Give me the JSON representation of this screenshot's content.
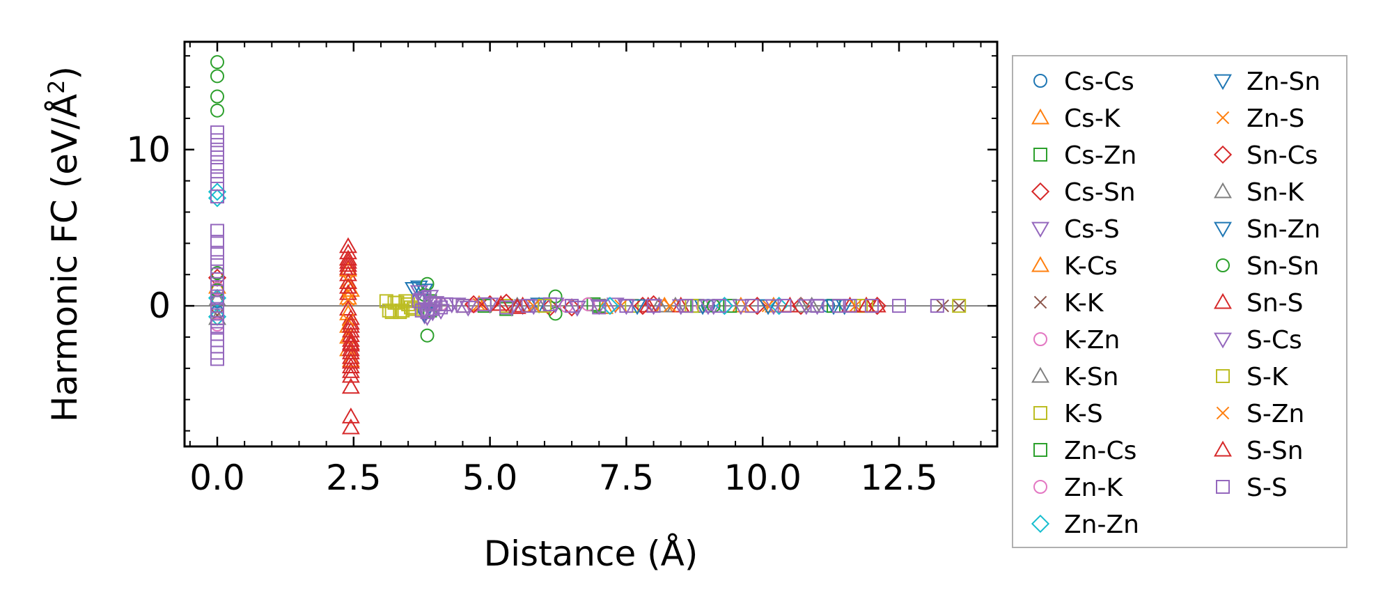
{
  "chart_data": {
    "type": "scatter",
    "title": "",
    "xlabel": "Distance (Å)",
    "ylabel_main": "Harmonic FC (eV/Å",
    "ylabel_sup": "2",
    "ylabel_close": ")",
    "xlim": [
      -0.6,
      14.3
    ],
    "ylim": [
      -9.0,
      16.9
    ],
    "xticks": [
      0.0,
      2.5,
      5.0,
      7.5,
      10.0,
      12.5
    ],
    "xtick_labels": [
      "0.0",
      "2.5",
      "5.0",
      "7.5",
      "10.0",
      "12.5"
    ],
    "yticks": [
      0,
      10
    ],
    "ytick_labels": [
      "0",
      "10"
    ],
    "zero_line": true,
    "grid": false,
    "legend_position": "right",
    "series": [
      {
        "name": "Cs-Cs",
        "marker": "circle",
        "color": "#1f77b4",
        "x": [
          0.0,
          0.0,
          9.0,
          11.2
        ],
        "y": [
          0.3,
          -0.4,
          0.0,
          0.0
        ]
      },
      {
        "name": "Cs-K",
        "marker": "triangle-up",
        "color": "#ff7f0e",
        "x": [
          0.0,
          2.4,
          2.4,
          2.4,
          2.4,
          4.8,
          7.1,
          9.6,
          11.9
        ],
        "y": [
          1.2,
          2.3,
          1.5,
          -0.5,
          -1.3,
          0.1,
          -0.1,
          0.0,
          0.0
        ]
      },
      {
        "name": "Cs-Zn",
        "marker": "square",
        "color": "#2ca02c",
        "x": [
          3.9,
          5.3,
          6.9,
          8.8,
          11.3
        ],
        "y": [
          0.3,
          -0.2,
          0.1,
          0.0,
          0.0
        ]
      },
      {
        "name": "Cs-Sn",
        "marker": "diamond",
        "color": "#d62728",
        "x": [
          0.0,
          5.0,
          6.5,
          8.0,
          10.7,
          12.1
        ],
        "y": [
          1.8,
          0.1,
          -0.1,
          0.1,
          0.0,
          0.0
        ]
      },
      {
        "name": "Cs-S",
        "marker": "triangle-down",
        "color": "#9467bd",
        "x": [
          3.8,
          4.4,
          5.6,
          7.3,
          9.1,
          11.0
        ],
        "y": [
          -0.6,
          0.1,
          0.0,
          0.1,
          0.0,
          0.0
        ]
      },
      {
        "name": "K-Cs",
        "marker": "triangle-up",
        "color": "#ff7f0e",
        "x": [
          2.4,
          2.4,
          2.4,
          2.4,
          2.45,
          2.45,
          5.6,
          8.2,
          10.2
        ],
        "y": [
          3.0,
          0.5,
          -2.0,
          -2.8,
          -3.5,
          1.0,
          0.0,
          0.0,
          0.0
        ]
      },
      {
        "name": "K-K",
        "marker": "x",
        "color": "#8c564b",
        "x": [
          0.0,
          0.0,
          13.3,
          13.6
        ],
        "y": [
          1.6,
          -0.6,
          0.0,
          0.0
        ]
      },
      {
        "name": "K-Zn",
        "marker": "circle",
        "color": "#e377c2",
        "x": [
          0.0,
          4.7,
          6.8,
          9.3
        ],
        "y": [
          -1.2,
          0.0,
          0.1,
          0.0
        ]
      },
      {
        "name": "K-Sn",
        "marker": "triangle-up",
        "color": "#7f7f7f",
        "x": [
          0.0,
          5.9,
          8.4,
          10.9
        ],
        "y": [
          0.4,
          0.0,
          0.0,
          0.0
        ]
      },
      {
        "name": "K-S",
        "marker": "square",
        "color": "#bcbd22",
        "x": [
          3.1,
          3.2,
          3.3,
          3.4,
          3.5,
          3.6,
          5.3,
          7.6,
          9.8,
          11.8,
          13.6
        ],
        "y": [
          0.3,
          -0.4,
          0.2,
          -0.3,
          0.1,
          -0.2,
          0.0,
          0.0,
          0.0,
          0.0,
          0.0
        ]
      },
      {
        "name": "Zn-Cs",
        "marker": "square",
        "color": "#2ca02c",
        "x": [
          3.9,
          4.9,
          7.0,
          9.4
        ],
        "y": [
          -0.3,
          0.0,
          0.0,
          0.0
        ]
      },
      {
        "name": "Zn-K",
        "marker": "circle",
        "color": "#e377c2",
        "x": [
          0.0,
          4.1,
          6.4,
          8.9
        ],
        "y": [
          1.1,
          0.1,
          0.0,
          0.0
        ]
      },
      {
        "name": "Zn-Zn",
        "marker": "diamond",
        "color": "#17becf",
        "x": [
          0.0,
          0.0,
          0.0,
          0.0,
          7.2,
          9.3,
          10.3
        ],
        "y": [
          7.3,
          6.9,
          0.5,
          -0.7,
          0.0,
          0.0,
          0.0
        ]
      },
      {
        "name": "Zn-Sn",
        "marker": "triangle-down",
        "color": "#1f77b4",
        "x": [
          3.6,
          3.7,
          3.8,
          6.6,
          8.9,
          11.3
        ],
        "y": [
          1.1,
          0.9,
          1.0,
          -0.1,
          0.0,
          0.0
        ]
      },
      {
        "name": "Zn-S",
        "marker": "x",
        "color": "#ff7f0e",
        "x": [
          2.4,
          2.4,
          4.8,
          7.4,
          10.1
        ],
        "y": [
          0.9,
          -1.8,
          0.1,
          0.0,
          0.0
        ]
      },
      {
        "name": "Sn-Cs",
        "marker": "diamond",
        "color": "#d62728",
        "x": [
          4.7,
          5.3,
          6.1,
          7.8,
          9.9
        ],
        "y": [
          0.1,
          0.2,
          -0.1,
          0.0,
          0.0
        ]
      },
      {
        "name": "Sn-K",
        "marker": "triangle-up",
        "color": "#7f7f7f",
        "x": [
          0.0,
          5.5,
          8.1,
          10.7
        ],
        "y": [
          -0.8,
          0.0,
          0.0,
          0.0
        ]
      },
      {
        "name": "Sn-Zn",
        "marker": "triangle-down",
        "color": "#1f77b4",
        "x": [
          3.7,
          3.8,
          5.9,
          7.7,
          10.1,
          11.5
        ],
        "y": [
          1.2,
          -0.5,
          0.1,
          0.0,
          0.0,
          0.0
        ]
      },
      {
        "name": "Sn-Sn",
        "marker": "circle",
        "color": "#2ca02c",
        "x": [
          0.0,
          0.0,
          0.0,
          0.0,
          0.0,
          0.0,
          3.85,
          3.85,
          3.8,
          6.2,
          6.2,
          9.1
        ],
        "y": [
          15.6,
          14.7,
          13.4,
          12.5,
          2.1,
          1.0,
          1.4,
          -1.9,
          0.7,
          0.6,
          -0.5,
          0.0
        ]
      },
      {
        "name": "Sn-S",
        "marker": "triangle-up",
        "color": "#d62728",
        "x": [
          2.4,
          2.4,
          2.4,
          2.4,
          2.4,
          2.4,
          2.4,
          2.4,
          2.4,
          2.45,
          2.45,
          2.45,
          2.45,
          2.45,
          2.45,
          2.45,
          2.45,
          2.45,
          2.45,
          2.45,
          2.45,
          2.45,
          2.45,
          2.45,
          2.45,
          5.6,
          8.5,
          11.6,
          12.1
        ],
        "y": [
          3.8,
          3.4,
          3.0,
          2.8,
          2.4,
          2.0,
          1.5,
          0.8,
          -0.2,
          -0.8,
          -1.3,
          -1.6,
          -1.9,
          -2.2,
          -2.5,
          -2.8,
          -3.0,
          -3.3,
          -3.6,
          -3.9,
          -4.2,
          -4.5,
          -5.2,
          -7.1,
          -7.8,
          0.0,
          0.0,
          0.0,
          0.0
        ]
      },
      {
        "name": "S-Cs",
        "marker": "triangle-down",
        "color": "#9467bd",
        "x": [
          3.7,
          3.75,
          3.8,
          3.85,
          3.9,
          3.95,
          4.0,
          4.1,
          4.3,
          4.6,
          5.0,
          5.4,
          5.8,
          6.2,
          6.6,
          7.0,
          7.5,
          8.0,
          8.5,
          9.0,
          9.6,
          10.2,
          10.8
        ],
        "y": [
          0.9,
          0.4,
          -0.2,
          -0.7,
          0.6,
          -0.4,
          0.2,
          -0.3,
          0.1,
          -0.1,
          0.1,
          -0.1,
          0.0,
          0.1,
          -0.1,
          0.0,
          0.0,
          0.0,
          0.0,
          0.0,
          0.0,
          0.0,
          0.0
        ]
      },
      {
        "name": "S-K",
        "marker": "square",
        "color": "#bcbd22",
        "x": [
          3.15,
          3.25,
          3.35,
          3.45,
          3.55,
          4.0,
          4.5,
          6.0,
          8.7,
          11.9
        ],
        "y": [
          -0.3,
          0.2,
          -0.4,
          0.3,
          -0.1,
          0.1,
          0.0,
          0.0,
          0.0,
          0.0
        ]
      },
      {
        "name": "S-Zn",
        "marker": "x",
        "color": "#ff7f0e",
        "x": [
          2.4,
          2.4,
          2.4,
          5.8,
          8.3,
          11.7
        ],
        "y": [
          1.6,
          0.4,
          -0.9,
          0.0,
          0.0,
          0.0
        ]
      },
      {
        "name": "S-Sn",
        "marker": "triangle-up",
        "color": "#d62728",
        "x": [
          2.4,
          2.4,
          2.45,
          2.45,
          5.2,
          5.5,
          7.9,
          10.5,
          11.9
        ],
        "y": [
          2.6,
          1.2,
          -1.1,
          -2.4,
          0.1,
          -0.1,
          0.0,
          0.0,
          0.0
        ]
      },
      {
        "name": "S-S",
        "marker": "square",
        "color": "#9467bd",
        "x": [
          0.0,
          0.0,
          0.0,
          0.0,
          0.0,
          0.0,
          0.0,
          0.0,
          0.0,
          0.0,
          0.0,
          0.0,
          0.0,
          0.0,
          0.0,
          0.0,
          0.0,
          0.0,
          0.0,
          0.0,
          0.0,
          0.0,
          0.0,
          0.0,
          0.0,
          3.7,
          3.75,
          3.8,
          3.85,
          3.9,
          3.95,
          4.0,
          4.1,
          4.2,
          4.5,
          4.9,
          5.3,
          5.7,
          6.1,
          6.5,
          7.0,
          7.5,
          8.0,
          8.6,
          9.2,
          9.8,
          10.4,
          11.0,
          11.4,
          11.6,
          12.0,
          12.5,
          13.2
        ],
        "y": [
          11.1,
          10.6,
          10.0,
          9.5,
          8.9,
          8.3,
          7.8,
          7.0,
          4.8,
          4.1,
          3.4,
          2.8,
          2.2,
          1.7,
          1.2,
          0.6,
          0.2,
          -0.3,
          -0.8,
          -1.3,
          -1.8,
          -2.2,
          -2.6,
          -3.0,
          -3.4,
          0.3,
          -0.3,
          0.5,
          -0.4,
          0.2,
          -0.2,
          0.1,
          -0.1,
          0.1,
          0.0,
          0.1,
          -0.1,
          0.0,
          0.1,
          0.0,
          -0.1,
          0.0,
          0.0,
          0.0,
          0.0,
          0.0,
          0.0,
          0.0,
          0.0,
          0.0,
          0.0,
          0.0,
          0.0
        ]
      }
    ]
  }
}
